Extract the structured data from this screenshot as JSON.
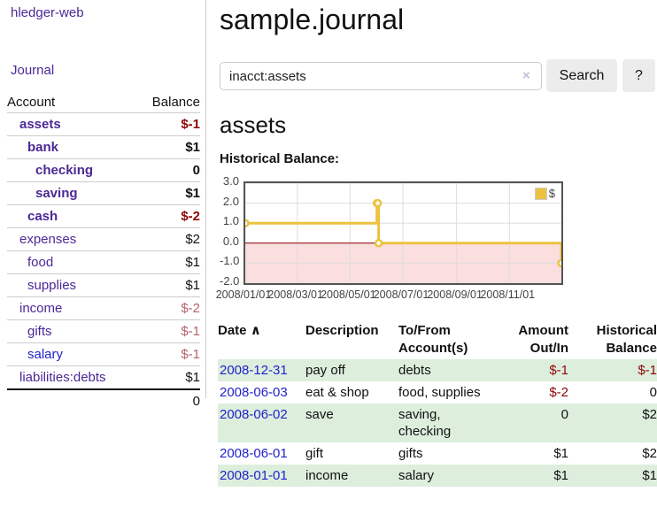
{
  "app": {
    "title": "hledger-web",
    "nav_journal": "Journal"
  },
  "sidebar": {
    "headers": {
      "account": "Account",
      "balance": "Balance"
    },
    "accounts": [
      {
        "name": "assets",
        "level": 1,
        "bold": true,
        "link": "purple",
        "balance": "$-1",
        "tone": "neg-strong"
      },
      {
        "name": "bank",
        "level": 2,
        "bold": true,
        "link": "purple",
        "balance": "$1",
        "tone": "plain"
      },
      {
        "name": "checking",
        "level": 3,
        "bold": true,
        "link": "purple",
        "balance": "0",
        "tone": "plain"
      },
      {
        "name": "saving",
        "level": 3,
        "bold": true,
        "link": "purple",
        "balance": "$1",
        "tone": "plain"
      },
      {
        "name": "cash",
        "level": 2,
        "bold": true,
        "link": "purple",
        "balance": "$-2",
        "tone": "neg-strong"
      },
      {
        "name": "expenses",
        "level": 1,
        "bold": false,
        "link": "purple",
        "balance": "$2",
        "tone": "plain"
      },
      {
        "name": "food",
        "level": 2,
        "bold": false,
        "link": "purple",
        "balance": "$1",
        "tone": "plain"
      },
      {
        "name": "supplies",
        "level": 2,
        "bold": false,
        "link": "purple",
        "balance": "$1",
        "tone": "plain"
      },
      {
        "name": "income",
        "level": 1,
        "bold": false,
        "link": "purple",
        "balance": "$-2",
        "tone": "neg-soft"
      },
      {
        "name": "gifts",
        "level": 2,
        "bold": false,
        "link": "purple",
        "balance": "$-1",
        "tone": "neg-soft"
      },
      {
        "name": "salary",
        "level": 2,
        "bold": false,
        "link": "blue",
        "balance": "$-1",
        "tone": "neg-soft"
      },
      {
        "name": "liabilities:debts",
        "level": 1,
        "bold": false,
        "link": "purple",
        "balance": "$1",
        "tone": "plain"
      }
    ],
    "total": "0"
  },
  "header": {
    "title": "sample.journal"
  },
  "search": {
    "value": "inacct:assets",
    "clear_icon": "×",
    "button_label": "Search",
    "help_label": "?"
  },
  "main": {
    "heading": "assets",
    "chart_label": "Historical Balance:"
  },
  "chart_data": {
    "type": "line",
    "step": true,
    "title": "Historical Balance:",
    "xlim": [
      "2008-01-01",
      "2008-12-31"
    ],
    "ylim": [
      -2.0,
      3.0
    ],
    "yticks": [
      "3.0",
      "2.0",
      "1.0",
      "0.0",
      "-1.0",
      "-2.0"
    ],
    "xticks": [
      {
        "date": "2008-01-01",
        "label": "2008/01/01"
      },
      {
        "date": "2008-03-01",
        "label": "2008/03/01"
      },
      {
        "date": "2008-05-01",
        "label": "2008/05/01"
      },
      {
        "date": "2008-07-01",
        "label": "2008/07/01"
      },
      {
        "date": "2008-09-01",
        "label": "2008/09/01"
      },
      {
        "date": "2008-11-01",
        "label": "2008/11/01"
      }
    ],
    "series": [
      {
        "name": "$",
        "color": "#edc240",
        "points": [
          {
            "x": "2008-01-01",
            "y": 1
          },
          {
            "x": "2008-06-01",
            "y": 2
          },
          {
            "x": "2008-06-02",
            "y": 2
          },
          {
            "x": "2008-06-03",
            "y": 0
          },
          {
            "x": "2008-12-31",
            "y": -1
          }
        ]
      }
    ],
    "grid": true,
    "legend_position": "top-right",
    "colors": {
      "grid": "#dddddd",
      "border": "#545454",
      "zero_line": "#8b0000",
      "negative_fill": "#fbdede",
      "marker_fill": "#ffffff"
    }
  },
  "register": {
    "headers": {
      "date": "Date",
      "sort_indicator": "∧",
      "description": "Description",
      "tofrom": "To/From Account(s)",
      "amount": "Amount Out/In",
      "balance": "Historical Balance"
    },
    "rows": [
      {
        "date": "2008-12-31",
        "description": "pay off",
        "tofrom": "debts",
        "amount": "$-1",
        "amount_tone": "neg-strong",
        "balance": "$-1",
        "balance_tone": "neg-strong",
        "shaded": true
      },
      {
        "date": "2008-06-03",
        "description": "eat & shop",
        "tofrom": "food, supplies",
        "amount": "$-2",
        "amount_tone": "neg-strong",
        "balance": "0",
        "balance_tone": "plain",
        "shaded": false
      },
      {
        "date": "2008-06-02",
        "description": "save",
        "tofrom": "saving,\nchecking",
        "amount": "0",
        "amount_tone": "plain",
        "balance": "$2",
        "balance_tone": "plain",
        "shaded": true
      },
      {
        "date": "2008-06-01",
        "description": "gift",
        "tofrom": "gifts",
        "amount": "$1",
        "amount_tone": "plain",
        "balance": "$2",
        "balance_tone": "plain",
        "shaded": false
      },
      {
        "date": "2008-01-01",
        "description": "income",
        "tofrom": "salary",
        "amount": "$1",
        "amount_tone": "plain",
        "balance": "$1",
        "balance_tone": "plain",
        "shaded": true
      }
    ]
  },
  "colors": {
    "link_purple": "#4b2896",
    "link_blue": "#2222cc",
    "negative_strong": "#8f0505",
    "negative_soft": "#b5636b",
    "row_stripe_green": "#ddeedd",
    "series_yellow": "#edc240"
  }
}
